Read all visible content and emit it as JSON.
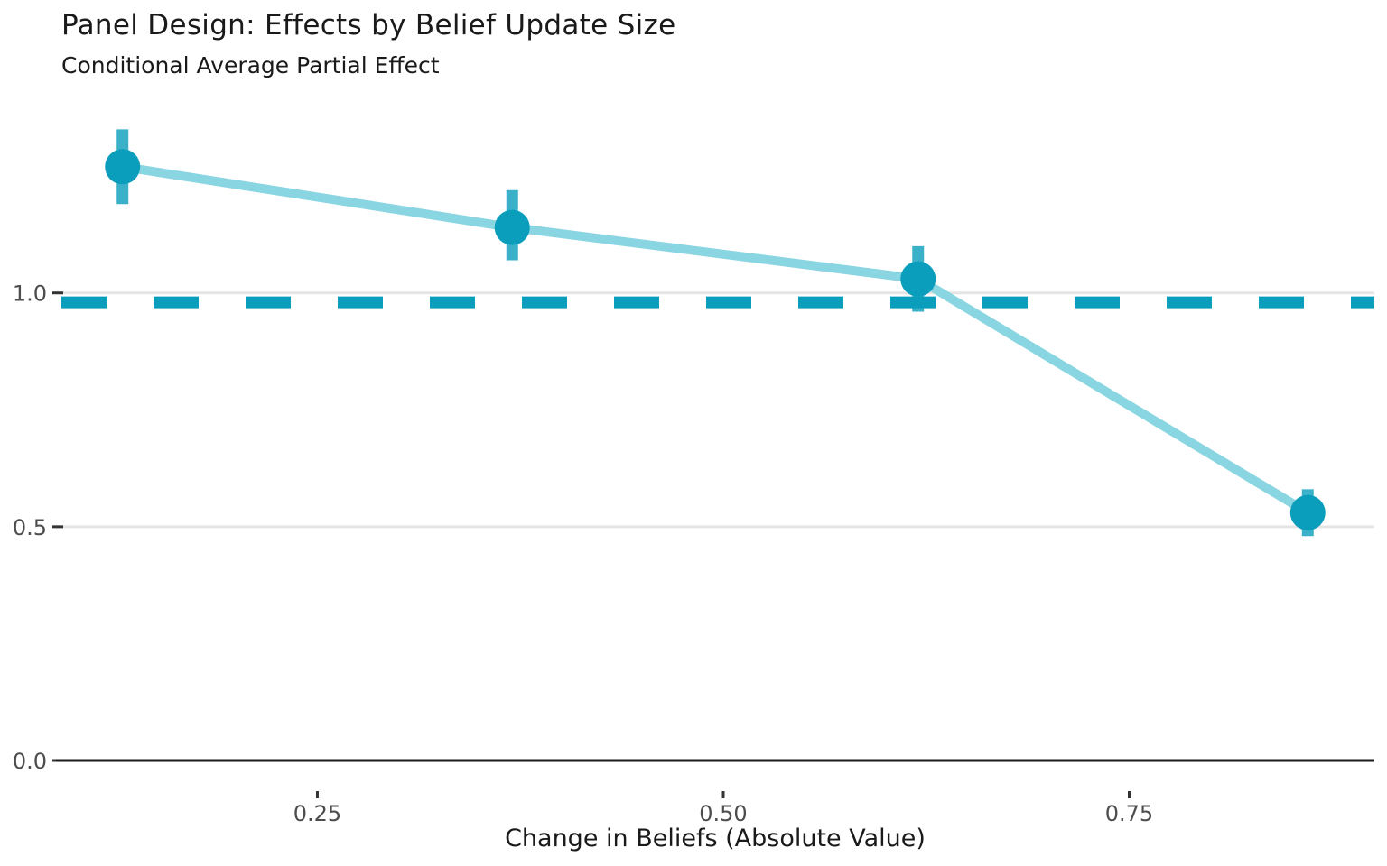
{
  "header": {
    "title": "Panel Design: Effects by Belief Update Size",
    "subtitle": "Conditional Average Partial Effect"
  },
  "axes": {
    "x_label": "Change in Beliefs (Absolute Value)",
    "y_label": ""
  },
  "colors": {
    "point": "#0A9EBC",
    "error_bar": "#0A9EBC",
    "error_bar_opacity": 0.8,
    "trend_line": "#8AD5E2",
    "reference_line": "#0A9EBC",
    "gridline": "#E5E5E5",
    "axis_line": "#1A1A1A",
    "tick_mark": "#333333",
    "tick_label": "#4D4D4D",
    "background": "#FFFFFF"
  },
  "chart_data": {
    "type": "line",
    "title": "Panel Design: Effects by Belief Update Size",
    "subtitle": "Conditional Average Partial Effect",
    "xlabel": "Change in Beliefs (Absolute Value)",
    "ylabel": "",
    "x": [
      0.13,
      0.37,
      0.62,
      0.86
    ],
    "y": [
      1.27,
      1.14,
      1.03,
      0.53
    ],
    "ci_low": [
      1.19,
      1.07,
      0.96,
      0.48
    ],
    "ci_high": [
      1.35,
      1.22,
      1.1,
      0.58
    ],
    "reference_line_y": 0.98,
    "reference_line_style": "dashed",
    "x_ticks": [
      0.25,
      0.5,
      0.75
    ],
    "x_tick_labels": [
      "0.25",
      "0.50",
      "0.75"
    ],
    "y_ticks": [
      0.0,
      0.5,
      1.0
    ],
    "y_tick_labels": [
      "0.0",
      "0.5",
      "1.0"
    ],
    "xlim": [
      0.089,
      0.901
    ],
    "ylim": [
      0.0,
      1.395
    ],
    "grid": "horizontal-only",
    "legend": "none"
  }
}
